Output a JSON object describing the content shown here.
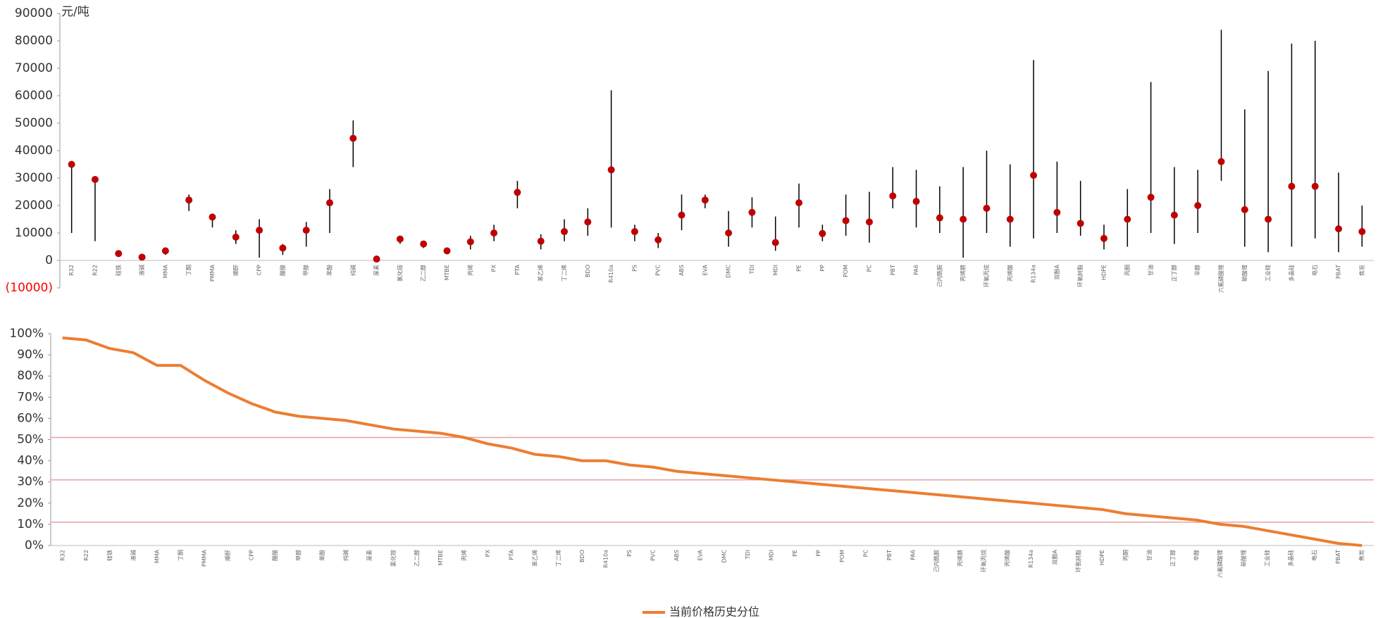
{
  "chart_data": [
    {
      "type": "range",
      "unit_label": "元/吨",
      "categories": [
        "R32",
        "R22",
        "硅铁",
        "液碱",
        "MMA",
        "丁酮",
        "PMMA",
        "顺酐",
        "CPP",
        "醋酸",
        "甲醇",
        "苯酚",
        "纯碱",
        "尿素",
        "氯化铵",
        "乙二醇",
        "MTBE",
        "丙烯",
        "PX",
        "PTA",
        "苯乙烯",
        "丁二烯",
        "BDO",
        "R410a",
        "PS",
        "PVC",
        "ABS",
        "EVA",
        "DMC",
        "TDI",
        "MDI",
        "PE",
        "PP",
        "POM",
        "PC",
        "PBT",
        "PA6",
        "己内酰胺",
        "丙烯腈",
        "环氧丙烷",
        "丙烯酸",
        "R134a",
        "双酚A",
        "环氧树脂",
        "HDPE",
        "丙酮",
        "甘油",
        "正丁醇",
        "辛醇",
        "六氟磷酸锂",
        "碳酸锂",
        "工业硅",
        "多晶硅",
        "电石",
        "PBAT",
        "焦炭"
      ],
      "current": [
        35000,
        29500,
        2500,
        1200,
        3500,
        22000,
        15800,
        8500,
        11000,
        4500,
        11000,
        21000,
        44500,
        500,
        7800,
        6000,
        3500,
        6800,
        10000,
        24800,
        7000,
        10500,
        14000,
        33000,
        10500,
        7500,
        16500,
        22000,
        10000,
        17500,
        6500,
        21000,
        9800,
        14500,
        14000,
        23500,
        21500,
        15500,
        15000,
        19000,
        15000,
        31000,
        17500,
        13500,
        8000,
        15000,
        23000,
        16500,
        20000,
        36000,
        18500,
        15000,
        27000,
        27000,
        11500,
        10500
      ],
      "low": [
        10000,
        7000,
        1800,
        800,
        2000,
        18000,
        12000,
        6000,
        1000,
        2000,
        5000,
        10000,
        34000,
        200,
        6000,
        4500,
        2800,
        4000,
        7000,
        19000,
        4000,
        7000,
        9000,
        12000,
        7000,
        4500,
        11000,
        19000,
        5000,
        12000,
        3500,
        12000,
        7000,
        9000,
        6500,
        19000,
        12000,
        10000,
        1000,
        10000,
        5000,
        8000,
        10000,
        9000,
        4000,
        5000,
        10000,
        6000,
        10000,
        29000,
        5000,
        3000,
        5000,
        8000,
        3000,
        5000
      ],
      "high": [
        35500,
        30000,
        3000,
        1500,
        4000,
        24000,
        17000,
        11000,
        15000,
        6000,
        14000,
        26000,
        51000,
        1500,
        9000,
        7000,
        4200,
        9000,
        13000,
        29000,
        9500,
        15000,
        19000,
        62000,
        13000,
        10000,
        24000,
        24000,
        18000,
        23000,
        16000,
        28000,
        13000,
        24000,
        25000,
        34000,
        33000,
        27000,
        34000,
        40000,
        35000,
        73000,
        36000,
        29000,
        13000,
        26000,
        65000,
        34000,
        33000,
        84000,
        55000,
        69000,
        79000,
        80000,
        32000,
        20000
      ],
      "color": "#c00000",
      "line_color": "#000000",
      "ylim": [
        -10000,
        90000
      ],
      "yticks": [
        {
          "value": -10000,
          "label": "(10000)"
        },
        0,
        10000,
        20000,
        30000,
        40000,
        50000,
        60000,
        70000,
        80000,
        90000
      ],
      "negative_color": "#ff0000"
    },
    {
      "type": "line",
      "categories": [
        "R32",
        "R22",
        "硅铁",
        "液碱",
        "MMA",
        "丁酮",
        "PMMA",
        "顺酐",
        "CPP",
        "醋酸",
        "甲醇",
        "苯酚",
        "纯碱",
        "尿素",
        "氯化铵",
        "乙二醇",
        "MTBE",
        "丙烯",
        "PX",
        "PTA",
        "苯乙烯",
        "丁二烯",
        "BDO",
        "R410a",
        "PS",
        "PVC",
        "ABS",
        "EVA",
        "DMC",
        "TDI",
        "MDI",
        "PE",
        "PP",
        "POM",
        "PC",
        "PBT",
        "PA6",
        "己内酰胺",
        "丙烯腈",
        "环氧丙烷",
        "丙烯酸",
        "R134a",
        "双酚A",
        "环氧树脂",
        "HDPE",
        "丙酮",
        "甘油",
        "正丁醇",
        "辛醇",
        "六氟磷酸锂",
        "碳酸锂",
        "工业硅",
        "多晶硅",
        "电石",
        "PBAT",
        "焦炭"
      ],
      "series": [
        {
          "name": "当前价格历史分位",
          "color": "#ed7d31",
          "values": [
            98,
            97,
            93,
            91,
            85,
            85,
            78,
            72,
            67,
            63,
            61,
            60,
            59,
            57,
            55,
            54,
            53,
            51,
            48,
            46,
            43,
            42,
            40,
            40,
            38,
            37,
            35,
            34,
            33,
            32,
            31,
            30,
            29,
            28,
            27,
            26,
            25,
            24,
            23,
            22,
            21,
            20,
            19,
            18,
            17,
            15,
            14,
            13,
            12,
            10,
            9,
            7,
            5,
            3,
            1,
            0
          ]
        }
      ],
      "ylim": [
        0,
        100
      ],
      "yticks": [
        {
          "value": 0,
          "label": "0%"
        },
        {
          "value": 10,
          "label": "10%"
        },
        {
          "value": 20,
          "label": "20%"
        },
        {
          "value": 30,
          "label": "30%"
        },
        {
          "value": 40,
          "label": "40%"
        },
        {
          "value": 50,
          "label": "50%"
        },
        {
          "value": 60,
          "label": "60%"
        },
        {
          "value": 70,
          "label": "70%"
        },
        {
          "value": 80,
          "label": "80%"
        },
        {
          "value": 90,
          "label": "90%"
        },
        {
          "value": 100,
          "label": "100%"
        }
      ],
      "reference_lines": [
        51,
        31,
        11
      ],
      "reference_color": "#e8a0a0",
      "legend": "bottom"
    }
  ]
}
